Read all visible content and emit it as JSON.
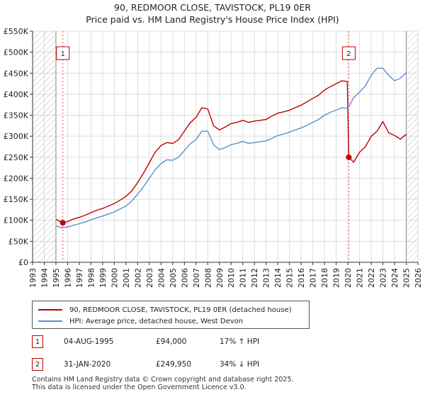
{
  "chart_data": {
    "type": "line",
    "title": "90, REDMOOR CLOSE, TAVISTOCK, PL19 0ER",
    "subtitle": "Price paid vs. HM Land Registry's House Price Index (HPI)",
    "xlim": [
      1993,
      2026
    ],
    "ylim": [
      0,
      550000
    ],
    "x_ticks": [
      "1993",
      "1994",
      "1995",
      "1996",
      "1997",
      "1998",
      "1999",
      "2000",
      "2001",
      "2002",
      "2003",
      "2004",
      "2005",
      "2006",
      "2007",
      "2008",
      "2009",
      "2010",
      "2011",
      "2012",
      "2013",
      "2014",
      "2015",
      "2016",
      "2017",
      "2018",
      "2019",
      "2020",
      "2021",
      "2022",
      "2023",
      "2024",
      "2025",
      "2026"
    ],
    "y_ticks": [
      {
        "value": 0,
        "label": "£0"
      },
      {
        "value": 50000,
        "label": "£50K"
      },
      {
        "value": 100000,
        "label": "£100K"
      },
      {
        "value": 150000,
        "label": "£150K"
      },
      {
        "value": 200000,
        "label": "£200K"
      },
      {
        "value": 250000,
        "label": "£250K"
      },
      {
        "value": 300000,
        "label": "£300K"
      },
      {
        "value": 350000,
        "label": "£350K"
      },
      {
        "value": 400000,
        "label": "£400K"
      },
      {
        "value": 450000,
        "label": "£450K"
      },
      {
        "value": 500000,
        "label": "£500K"
      },
      {
        "value": 550000,
        "label": "£550K"
      }
    ],
    "hatch_before": 1995.0,
    "hatch_after": 2025.0,
    "series": [
      {
        "name": "90, REDMOOR CLOSE, TAVISTOCK, PL19 0ER (detached house)",
        "color": "#c00000",
        "x": [
          1995.0,
          1995.59,
          1996.0,
          1996.5,
          1997.0,
          1997.5,
          1998.0,
          1998.5,
          1999.0,
          1999.5,
          2000.0,
          2000.5,
          2001.0,
          2001.5,
          2002.0,
          2002.5,
          2003.0,
          2003.5,
          2004.0,
          2004.5,
          2005.0,
          2005.5,
          2006.0,
          2006.5,
          2007.0,
          2007.5,
          2008.0,
          2008.5,
          2009.0,
          2009.5,
          2010.0,
          2010.5,
          2011.0,
          2011.5,
          2012.0,
          2012.5,
          2013.0,
          2013.5,
          2014.0,
          2014.5,
          2015.0,
          2015.5,
          2016.0,
          2016.5,
          2017.0,
          2017.5,
          2018.0,
          2018.5,
          2019.0,
          2019.5,
          2019.95,
          2020.08,
          2020.5,
          2021.0,
          2021.5,
          2022.0,
          2022.5,
          2023.0,
          2023.5,
          2024.0,
          2024.5,
          2025.0
        ],
        "values": [
          102000,
          94000,
          97000,
          103000,
          107000,
          112000,
          118000,
          124000,
          128000,
          134000,
          140000,
          148000,
          157000,
          170000,
          190000,
          212000,
          237000,
          262000,
          278000,
          285000,
          283000,
          292000,
          312000,
          332000,
          345000,
          368000,
          365000,
          325000,
          315000,
          322000,
          330000,
          333000,
          338000,
          333000,
          336000,
          338000,
          340000,
          348000,
          355000,
          358000,
          362000,
          368000,
          374000,
          382000,
          390000,
          398000,
          410000,
          418000,
          425000,
          432000,
          430000,
          249950,
          238000,
          262000,
          275000,
          300000,
          312000,
          335000,
          308000,
          302000,
          293000,
          305000
        ]
      },
      {
        "name": "HPI: Average price, detached house, West Devon",
        "color": "#5b8fd0",
        "x": [
          1995.0,
          1995.5,
          1996.0,
          1996.5,
          1997.0,
          1997.5,
          1998.0,
          1998.5,
          1999.0,
          1999.5,
          2000.0,
          2000.5,
          2001.0,
          2001.5,
          2002.0,
          2002.5,
          2003.0,
          2003.5,
          2004.0,
          2004.5,
          2005.0,
          2005.5,
          2006.0,
          2006.5,
          2007.0,
          2007.5,
          2008.0,
          2008.5,
          2009.0,
          2009.5,
          2010.0,
          2010.5,
          2011.0,
          2011.5,
          2012.0,
          2012.5,
          2013.0,
          2013.5,
          2014.0,
          2014.5,
          2015.0,
          2015.5,
          2016.0,
          2016.5,
          2017.0,
          2017.5,
          2018.0,
          2018.5,
          2019.0,
          2019.5,
          2020.0,
          2020.5,
          2021.0,
          2021.5,
          2022.0,
          2022.5,
          2023.0,
          2023.5,
          2024.0,
          2024.5,
          2025.0
        ],
        "values": [
          87000,
          82000,
          84000,
          88000,
          92000,
          96000,
          101000,
          106000,
          110000,
          115000,
          120000,
          127000,
          134000,
          146000,
          162000,
          180000,
          200000,
          220000,
          235000,
          244000,
          243000,
          250000,
          266000,
          282000,
          292000,
          312000,
          312000,
          280000,
          268000,
          273000,
          280000,
          283000,
          288000,
          283000,
          285000,
          287000,
          289000,
          295000,
          302000,
          305000,
          310000,
          315000,
          320000,
          326000,
          333000,
          340000,
          350000,
          357000,
          362000,
          368000,
          366000,
          392000,
          405000,
          420000,
          445000,
          462000,
          462000,
          445000,
          432000,
          438000,
          452000
        ]
      }
    ],
    "sale_markers": [
      {
        "label": "1",
        "x": 1995.59,
        "y": 94000
      },
      {
        "label": "2",
        "x": 2020.08,
        "y": 249950
      }
    ]
  },
  "legend": {
    "items": [
      {
        "label": "90, REDMOOR CLOSE, TAVISTOCK, PL19 0ER (detached house)",
        "color": "#c00000"
      },
      {
        "label": "HPI: Average price, detached house, West Devon",
        "color": "#5b8fd0"
      }
    ]
  },
  "sales": [
    {
      "num": "1",
      "date": "04-AUG-1995",
      "price": "£94,000",
      "hpi": "17% ↑ HPI"
    },
    {
      "num": "2",
      "date": "31-JAN-2020",
      "price": "£249,950",
      "hpi": "34% ↓ HPI"
    }
  ],
  "footer": {
    "line1": "Contains HM Land Registry data © Crown copyright and database right 2025.",
    "line2": "This data is licensed under the Open Government Licence v3.0."
  }
}
